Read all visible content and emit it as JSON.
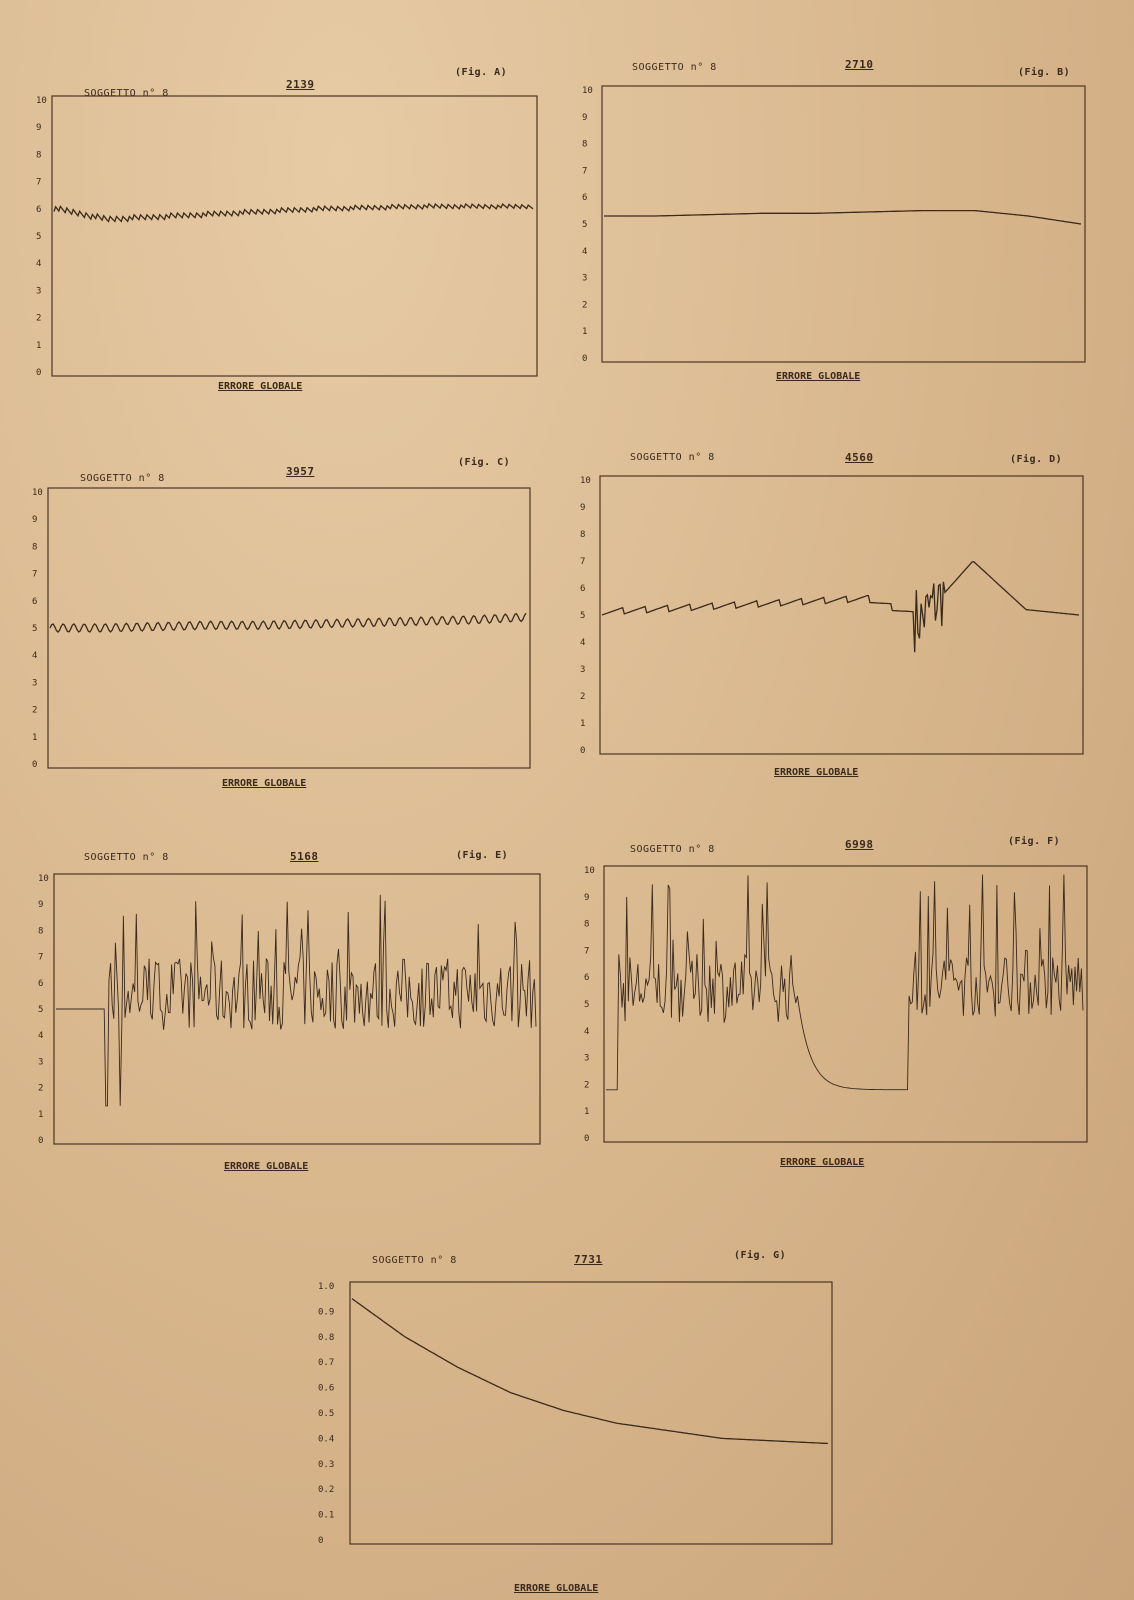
{
  "chart_data": [
    {
      "id": "A",
      "type": "line",
      "subject_label": "SOGGETTO n° 8",
      "number": "2139",
      "fig_label": "(Fig. A)",
      "xlabel": "ERRORE GLOBALE",
      "ylim": [
        0,
        10
      ],
      "yticks": [
        "0",
        "1",
        "2",
        "3",
        "4",
        "5",
        "6",
        "7",
        "8",
        "9",
        "10"
      ],
      "pattern": "sawtooth",
      "series": [
        {
          "values": [
            5.9,
            5.5,
            5.6,
            5.7,
            5.8,
            5.9,
            5.95,
            6.0,
            6.0,
            6.0
          ]
        }
      ]
    },
    {
      "id": "B",
      "type": "line",
      "subject_label": "SOGGETTO n° 8",
      "number": "2710",
      "fig_label": "(Fig. B)",
      "xlabel": "ERRORE GLOBALE",
      "ylim": [
        0,
        10
      ],
      "yticks": [
        "0",
        "1",
        "2",
        "3",
        "4",
        "5",
        "6",
        "7",
        "8",
        "9",
        "10"
      ],
      "pattern": "smooth",
      "series": [
        {
          "values": [
            5.3,
            5.3,
            5.35,
            5.4,
            5.4,
            5.45,
            5.5,
            5.5,
            5.3,
            5.0
          ]
        }
      ]
    },
    {
      "id": "C",
      "type": "line",
      "subject_label": "SOGGETTO n° 8",
      "number": "3957",
      "fig_label": "(Fig. C)",
      "xlabel": "ERRORE GLOBALE",
      "ylim": [
        0,
        10
      ],
      "yticks": [
        "0",
        "1",
        "2",
        "3",
        "4",
        "5",
        "6",
        "7",
        "8",
        "9",
        "10"
      ],
      "pattern": "band",
      "series": [
        {
          "values": [
            5.0,
            5.0,
            5.05,
            5.1,
            5.1,
            5.15,
            5.2,
            5.25,
            5.3,
            5.4
          ]
        }
      ]
    },
    {
      "id": "D",
      "type": "line",
      "subject_label": "SOGGETTO n° 8",
      "number": "4560",
      "fig_label": "(Fig. D)",
      "xlabel": "ERRORE GLOBALE",
      "ylim": [
        0,
        10
      ],
      "yticks": [
        "0",
        "1",
        "2",
        "3",
        "4",
        "5",
        "6",
        "7",
        "8",
        "9",
        "10"
      ],
      "pattern": "band-then-burst",
      "series": [
        {
          "values": [
            5.0,
            5.1,
            5.2,
            5.3,
            5.4,
            5.5,
            4.8,
            7.0,
            5.2,
            5.0
          ]
        }
      ]
    },
    {
      "id": "E",
      "type": "line",
      "subject_label": "SOGGETTO n° 8",
      "number": "5168",
      "fig_label": "(Fig. E)",
      "xlabel": "ERRORE GLOBALE",
      "ylim": [
        0,
        10
      ],
      "yticks": [
        "0",
        "1",
        "2",
        "3",
        "4",
        "5",
        "6",
        "7",
        "8",
        "9",
        "10"
      ],
      "pattern": "chaotic",
      "series": [
        {
          "values": [
            5.0,
            5.0,
            4.0,
            9.0,
            1.2,
            6.0,
            5.5,
            6.0,
            5.5,
            5.5
          ]
        }
      ]
    },
    {
      "id": "F",
      "type": "line",
      "subject_label": "SOGGETTO n° 8",
      "number": "6998",
      "fig_label": "(Fig. F)",
      "xlabel": "ERRORE GLOBALE",
      "ylim": [
        0,
        10
      ],
      "yticks": [
        "0",
        "1",
        "2",
        "3",
        "4",
        "5",
        "6",
        "7",
        "8",
        "9",
        "10"
      ],
      "pattern": "chaotic-gap",
      "series": [
        {
          "values": [
            1.8,
            9.0,
            5.5,
            5.5,
            5.5,
            1.8,
            1.8,
            9.5,
            5.7,
            5.7
          ]
        }
      ]
    },
    {
      "id": "G",
      "type": "line",
      "subject_label": "SOGGETTO n° 8",
      "number": "7731",
      "fig_label": "(Fig. G)",
      "xlabel": "ERRORE GLOBALE",
      "ylim": [
        0,
        1.0
      ],
      "yticks": [
        "0",
        "0.1",
        "0.2",
        "0.3",
        "0.4",
        "0.5",
        "0.6",
        "0.7",
        "0.8",
        "0.9",
        "1.0"
      ],
      "pattern": "decay",
      "series": [
        {
          "values": [
            0.95,
            0.8,
            0.68,
            0.58,
            0.51,
            0.46,
            0.43,
            0.4,
            0.39,
            0.38
          ]
        }
      ]
    }
  ]
}
